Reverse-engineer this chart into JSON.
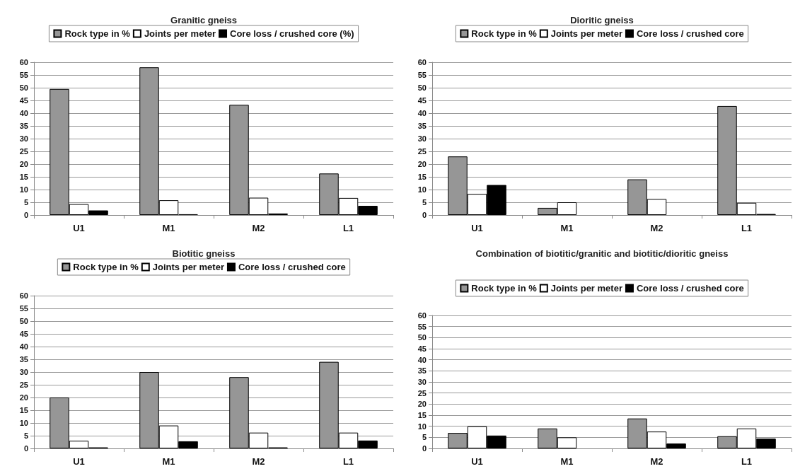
{
  "chart_data": [
    {
      "type": "bar",
      "title": "Granitic gneiss",
      "categories": [
        "U1",
        "M1",
        "M2",
        "L1"
      ],
      "series": [
        {
          "name": "Rock type in %",
          "color": "#969696",
          "values": [
            49.5,
            58,
            43.3,
            16.3
          ]
        },
        {
          "name": "Joints per meter",
          "color": "#ffffff",
          "values": [
            4.3,
            5.8,
            6.8,
            6.7
          ]
        },
        {
          "name": "Core loss / crushed core (%)",
          "color": "#000000",
          "values": [
            1.8,
            0.3,
            0.6,
            3.6
          ]
        }
      ],
      "ylim": [
        0,
        60
      ],
      "yticks": [
        0,
        5,
        10,
        15,
        20,
        25,
        30,
        35,
        40,
        45,
        50,
        55,
        60
      ],
      "grid": "y",
      "legend": "top"
    },
    {
      "type": "bar",
      "title": "Dioritic gneiss",
      "categories": [
        "U1",
        "M1",
        "M2",
        "L1"
      ],
      "series": [
        {
          "name": "Rock type in %",
          "color": "#969696",
          "values": [
            23,
            2.8,
            14,
            42.8
          ]
        },
        {
          "name": "Joints per meter",
          "color": "#ffffff",
          "values": [
            8.3,
            5,
            6.3,
            4.8
          ]
        },
        {
          "name": "Core loss / crushed core",
          "color": "#000000",
          "values": [
            11.8,
            null,
            null,
            0.4
          ]
        }
      ],
      "ylim": [
        0,
        60
      ],
      "yticks": [
        0,
        5,
        10,
        15,
        20,
        25,
        30,
        35,
        40,
        45,
        50,
        55,
        60
      ],
      "grid": "y",
      "legend": "top"
    },
    {
      "type": "bar",
      "title": "Biotitic gneiss",
      "categories": [
        "U1",
        "M1",
        "M2",
        "L1"
      ],
      "series": [
        {
          "name": "Rock type in %",
          "color": "#969696",
          "values": [
            20,
            30,
            28,
            34
          ]
        },
        {
          "name": "Joints per meter",
          "color": "#ffffff",
          "values": [
            3,
            9,
            6.2,
            6.2
          ]
        },
        {
          "name": "Core loss / crushed core",
          "color": "#000000",
          "values": [
            0.4,
            2.8,
            0.4,
            3.1
          ]
        }
      ],
      "ylim": [
        0,
        60
      ],
      "yticks": [
        0,
        5,
        10,
        15,
        20,
        25,
        30,
        35,
        40,
        45,
        50,
        55,
        60
      ],
      "grid": "y",
      "legend": "top"
    },
    {
      "type": "bar",
      "title": "Combination of biotitic/granitic and biotitic/dioritic gneiss",
      "categories": [
        "U1",
        "M1",
        "M2",
        "L1"
      ],
      "series": [
        {
          "name": "Rock type in %",
          "color": "#969696",
          "values": [
            7,
            9,
            13.5,
            5.5
          ]
        },
        {
          "name": "Joints per meter",
          "color": "#ffffff",
          "values": [
            10,
            5,
            7.6,
            9
          ]
        },
        {
          "name": "Core loss / crushed core",
          "color": "#000000",
          "values": [
            5.8,
            null,
            2.2,
            4.4
          ]
        }
      ],
      "ylim": [
        0,
        60
      ],
      "yticks": [
        0,
        5,
        10,
        15,
        20,
        25,
        30,
        35,
        40,
        45,
        50,
        55,
        60
      ],
      "grid": "y",
      "legend": "top"
    }
  ]
}
